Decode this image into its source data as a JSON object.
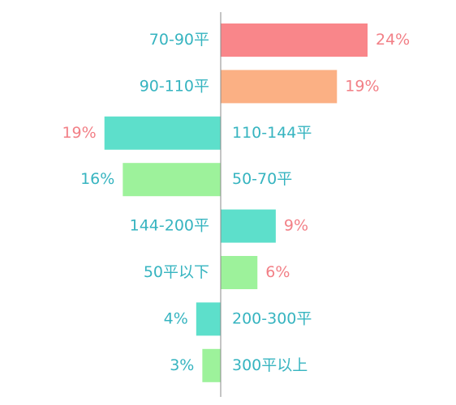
{
  "chart_data": {
    "type": "bar",
    "orientation": "horizontal-diverging",
    "value_unit": "%",
    "categories": [
      "70-90平",
      "90-110平",
      "110-144平",
      "50-70平",
      "144-200平",
      "50平以下",
      "200-300平",
      "300平以上"
    ],
    "values": [
      24,
      19,
      19,
      16,
      9,
      6,
      4,
      3
    ],
    "value_labels": [
      "24%",
      "19%",
      "19%",
      "16%",
      "9%",
      "6%",
      "4%",
      "3%"
    ],
    "bar_side": [
      "right",
      "right",
      "left",
      "left",
      "right",
      "right",
      "left",
      "left"
    ],
    "bar_colors": [
      "#f9868a",
      "#fbb084",
      "#5ddfcb",
      "#9df29b",
      "#5ddfcb",
      "#9df29b",
      "#5ddfcb",
      "#9df29b"
    ],
    "category_label_color": "#36b4c0",
    "value_label_colors": [
      "#f27f86",
      "#f27f86",
      "#f27f86",
      "#36b4c0",
      "#f27f86",
      "#f27f86",
      "#36b4c0",
      "#36b4c0"
    ],
    "axis_color": "#8a8a8a",
    "xlim": [
      -24,
      24
    ],
    "grid": false,
    "legend": "none",
    "title": "",
    "xlabel": "",
    "ylabel": ""
  }
}
